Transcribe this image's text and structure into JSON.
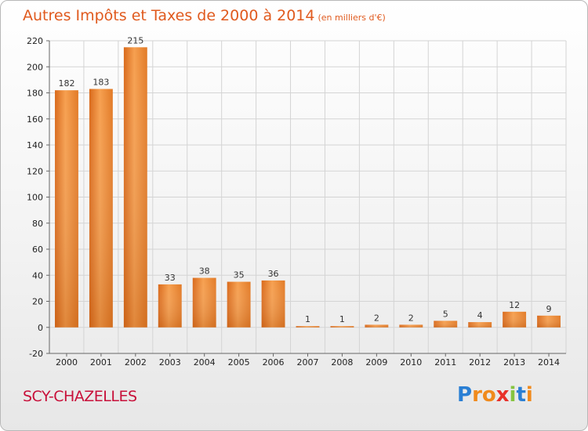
{
  "chart_data": {
    "type": "bar",
    "title": "Autres Impôts et Taxes de 2000 à 2014",
    "subtitle": "(en milliers d'€)",
    "categories": [
      "2000",
      "2001",
      "2002",
      "2003",
      "2004",
      "2005",
      "2006",
      "2007",
      "2008",
      "2009",
      "2010",
      "2011",
      "2012",
      "2013",
      "2014"
    ],
    "values": [
      182,
      183,
      215,
      33,
      38,
      35,
      36,
      1,
      1,
      2,
      2,
      5,
      4,
      12,
      9
    ],
    "ylim": [
      -20,
      220
    ],
    "yticks": [
      -20,
      0,
      20,
      40,
      60,
      80,
      100,
      120,
      140,
      160,
      180,
      200,
      220
    ],
    "grid": true,
    "bar_color": "#e8822a"
  },
  "footer": {
    "commune": "SCY-CHAZELLES",
    "logo_letters": [
      "P",
      "r",
      "o",
      "x",
      "i",
      "t",
      "i"
    ],
    "logo_colors": [
      "#2a7fd4",
      "#f08a1c",
      "#f08a1c",
      "#e8312a",
      "#86c440",
      "#2a7fd4",
      "#f08a1c"
    ]
  }
}
